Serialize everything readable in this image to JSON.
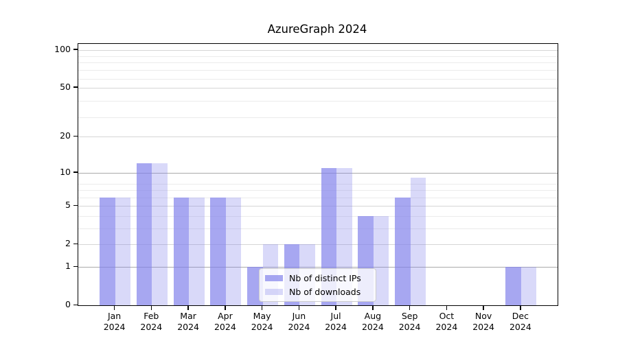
{
  "chart_data": {
    "type": "bar",
    "title": "AzureGraph 2024",
    "categories": [
      "Jan",
      "Feb",
      "Mar",
      "Apr",
      "May",
      "Jun",
      "Jul",
      "Aug",
      "Sep",
      "Oct",
      "Nov",
      "Dec"
    ],
    "category_year": "2024",
    "series": [
      {
        "name": "Nb of distinct IPs",
        "color": "#8282eb",
        "alpha": 0.7,
        "values": [
          6,
          12,
          6,
          6,
          1,
          2,
          11,
          4,
          6,
          0,
          0,
          1
        ]
      },
      {
        "name": "Nb of downloads",
        "color": "#8282eb",
        "alpha": 0.3,
        "values": [
          6,
          12,
          6,
          6,
          2,
          2,
          11,
          4,
          9,
          0,
          0,
          1
        ]
      }
    ],
    "y_axis": {
      "scale": "log1p",
      "ylim": [
        0,
        112
      ],
      "major_ticks": [
        0,
        1,
        2,
        5,
        10,
        20,
        50,
        100
      ],
      "minor_ticks": [
        3,
        4,
        6,
        7,
        8,
        29,
        39,
        59,
        69,
        79,
        89
      ],
      "emphasized_ticks": [
        1,
        10
      ]
    },
    "legend": {
      "location": "lower center",
      "entries": [
        "Nb of distinct IPs",
        "Nb of downloads"
      ]
    },
    "grid": {
      "horizontal": true,
      "vertical": false
    },
    "colors": {
      "grid_minor": "#ebebeb",
      "grid_major": "#d5d5d5",
      "grid_emphasized": "#a9a9a9",
      "spine": "#000000",
      "background": "#ffffff"
    }
  }
}
